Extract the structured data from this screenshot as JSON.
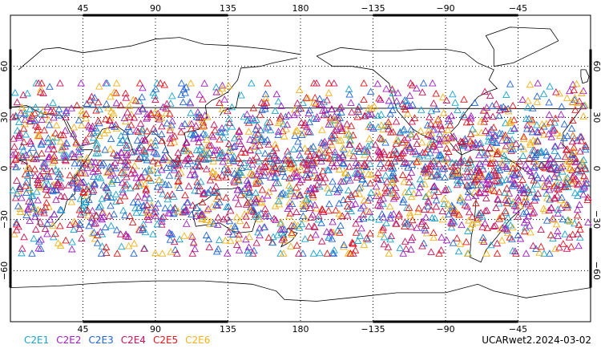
{
  "map": {
    "x_axis": {
      "ticks": [
        45,
        90,
        135,
        180,
        225,
        270,
        315
      ],
      "top_labels": [
        "45",
        "90",
        "135",
        "180",
        "−135",
        "−90",
        "−45"
      ],
      "bottom_labels": [
        "45",
        "90",
        "135",
        "180",
        "−135",
        "−90",
        "−45"
      ]
    },
    "y_axis": {
      "ticks": [
        60,
        30,
        0,
        -30,
        -60
      ],
      "labels": [
        "60",
        "30",
        "0",
        "−30",
        "−60"
      ]
    },
    "grid": true,
    "lon_range": [
      0,
      360
    ],
    "lat_range": [
      -90,
      90
    ],
    "marker": "triangle-open",
    "latitude_band": [
      -50,
      50
    ]
  },
  "legend": {
    "items": [
      {
        "label": "C2E1",
        "color": "#1ba3c9"
      },
      {
        "label": "C2E2",
        "color": "#a01ec4"
      },
      {
        "label": "C2E3",
        "color": "#1f63d6"
      },
      {
        "label": "C2E4",
        "color": "#c8125a"
      },
      {
        "label": "C2E5",
        "color": "#e0151b"
      },
      {
        "label": "C2E6",
        "color": "#f2b21a"
      }
    ]
  },
  "footer": {
    "text": "UCARwet2.2024-03-02"
  }
}
